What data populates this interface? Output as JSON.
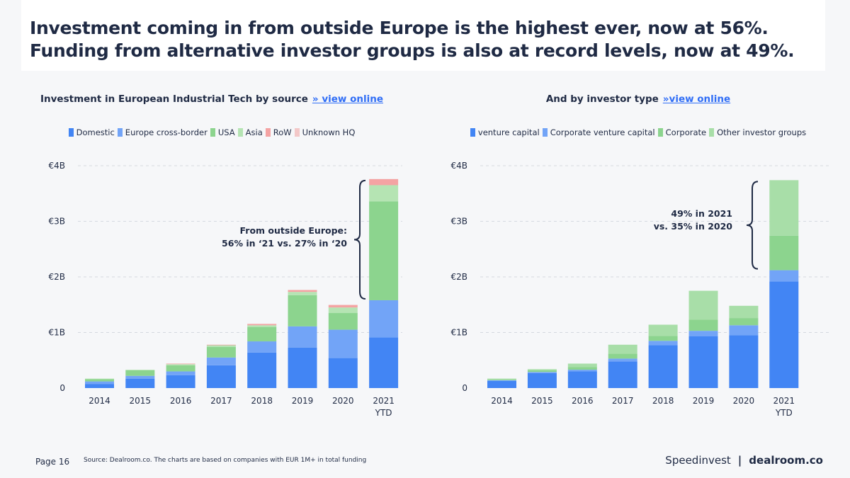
{
  "headline": "Investment coming in from outside Europe is the highest ever, now at 56%. Funding from alternative investor groups is also at record levels, now at 49%.",
  "footer": {
    "page": "Page 16",
    "source": "Source: Dealroom.co. The charts are based on companies with EUR 1M+ in total funding",
    "brand_left": "Speedinvest",
    "separator": "|",
    "brand_right": "dealroom.co"
  },
  "chart_data": [
    {
      "type": "bar",
      "stacked": true,
      "title": "Investment in European Industrial Tech by source",
      "link_label": "» view online",
      "categories": [
        [
          "2014"
        ],
        [
          "2015"
        ],
        [
          "2016"
        ],
        [
          "2017"
        ],
        [
          "2018"
        ],
        [
          "2019"
        ],
        [
          "2020"
        ],
        [
          "2021",
          "YTD"
        ]
      ],
      "y_ticks": [
        "0",
        "€1B",
        "€2B",
        "€3B",
        "€4B"
      ],
      "ylim": [
        0,
        4
      ],
      "grid": true,
      "legend_position": "top",
      "series": [
        {
          "name": "Domestic",
          "color": "#4285f4",
          "values": [
            0.07,
            0.17,
            0.23,
            0.41,
            0.64,
            0.73,
            0.54,
            0.91
          ]
        },
        {
          "name": "Europe cross-border",
          "color": "#72a4f7",
          "values": [
            0.05,
            0.05,
            0.07,
            0.14,
            0.2,
            0.38,
            0.51,
            0.67
          ]
        },
        {
          "name": "USA",
          "color": "#8cd48e",
          "values": [
            0.04,
            0.1,
            0.11,
            0.19,
            0.26,
            0.56,
            0.3,
            1.78
          ]
        },
        {
          "name": "Asia",
          "color": "#b5e4b3",
          "values": [
            0.01,
            0.01,
            0.02,
            0.03,
            0.03,
            0.06,
            0.1,
            0.29
          ]
        },
        {
          "name": "RoW",
          "color": "#f4a3a3",
          "values": [
            0.0,
            0.0,
            0.01,
            0.01,
            0.02,
            0.03,
            0.04,
            0.11
          ]
        },
        {
          "name": "Unknown HQ",
          "color": "#f3c8c8",
          "values": [
            0.0,
            0.0,
            0.0,
            0.0,
            0.01,
            0.01,
            0.01,
            0.0
          ]
        }
      ],
      "annotation": {
        "lines": [
          "From outside Europe:",
          "56% in ‘21 vs. 27% in ‘20"
        ]
      }
    },
    {
      "type": "bar",
      "stacked": true,
      "title": "And by investor type",
      "link_label": "»view online",
      "categories": [
        [
          "2014"
        ],
        [
          "2015"
        ],
        [
          "2016"
        ],
        [
          "2017"
        ],
        [
          "2018"
        ],
        [
          "2019"
        ],
        [
          "2020"
        ],
        [
          "2021",
          "YTD"
        ]
      ],
      "y_ticks": [
        "0",
        "€1B",
        "€2B",
        "€3B",
        "€4B"
      ],
      "ylim": [
        0,
        4
      ],
      "grid": true,
      "legend_position": "top",
      "series": [
        {
          "name": "venture capital",
          "color": "#4285f4",
          "values": [
            0.13,
            0.27,
            0.3,
            0.48,
            0.77,
            0.93,
            0.95,
            1.92
          ]
        },
        {
          "name": "Corporate venture capital",
          "color": "#72a4f7",
          "values": [
            0.01,
            0.02,
            0.03,
            0.05,
            0.08,
            0.1,
            0.18,
            0.2
          ]
        },
        {
          "name": "Corporate",
          "color": "#8cd48e",
          "values": [
            0.01,
            0.03,
            0.05,
            0.09,
            0.09,
            0.2,
            0.13,
            0.62
          ]
        },
        {
          "name": "Other investor groups",
          "color": "#a8dea8",
          "values": [
            0.02,
            0.02,
            0.06,
            0.16,
            0.2,
            0.52,
            0.22,
            1.0
          ]
        }
      ],
      "annotation": {
        "lines": [
          "49% in 2021",
          "vs. 35% in 2020"
        ]
      }
    }
  ]
}
